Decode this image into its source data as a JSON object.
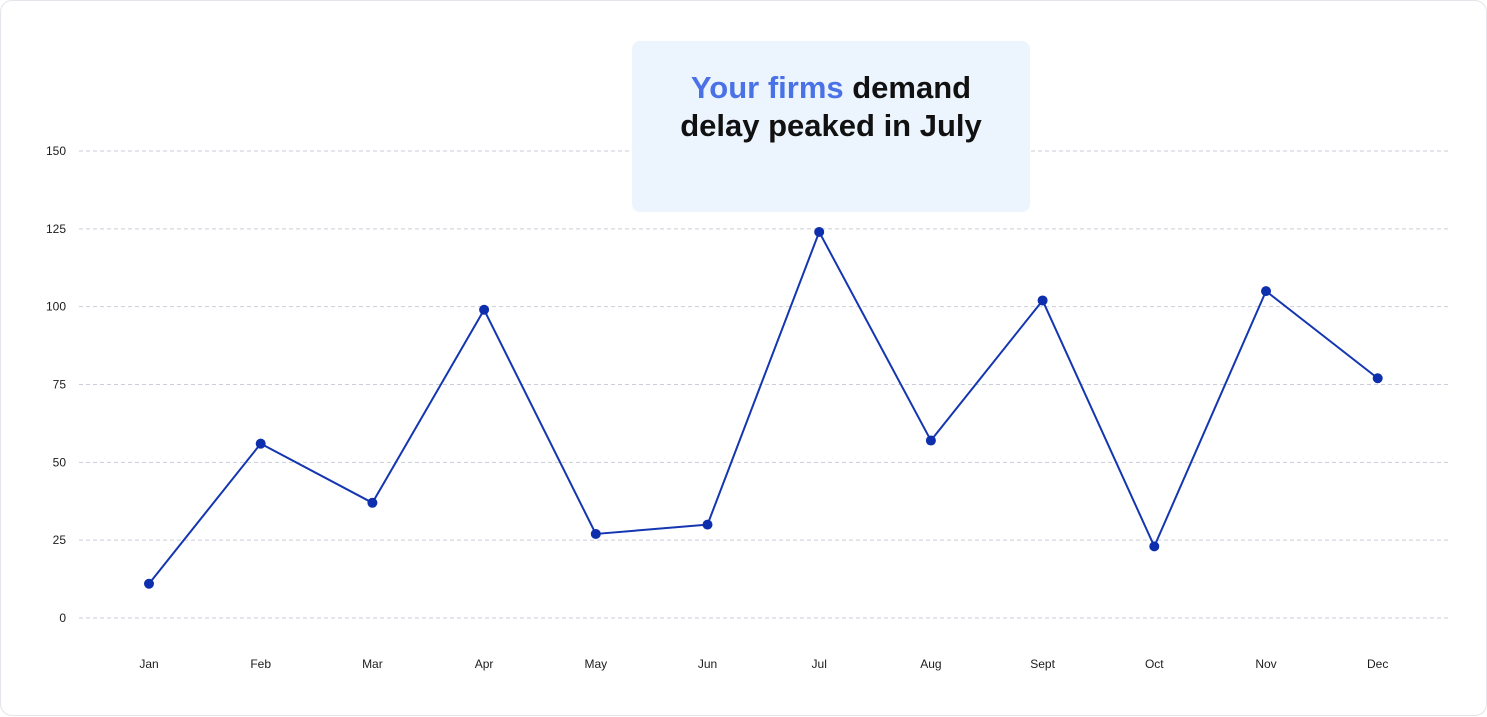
{
  "callout": {
    "highlight": "Your firms",
    "rest": " demand delay peaked in July"
  },
  "colors": {
    "line": "#1436b0",
    "point": "#0d2fae",
    "grid": "#c9ced8",
    "callout_bg": "#ecf4fd",
    "callout_accent": "#4a72e6"
  },
  "chart_data": {
    "type": "line",
    "categories": [
      "Jan",
      "Feb",
      "Mar",
      "Apr",
      "May",
      "Jun",
      "Jul",
      "Aug",
      "Sept",
      "Oct",
      "Nov",
      "Dec"
    ],
    "series": [
      {
        "values": [
          11,
          56,
          37,
          99,
          27,
          30,
          124,
          57,
          102,
          23,
          105,
          77
        ]
      }
    ],
    "yticks": [
      0,
      25,
      50,
      75,
      100,
      125,
      150
    ],
    "ylim": [
      0,
      150
    ],
    "grid": true,
    "grid_style": "dashed-horizontal",
    "markers": true,
    "legend": "none"
  }
}
